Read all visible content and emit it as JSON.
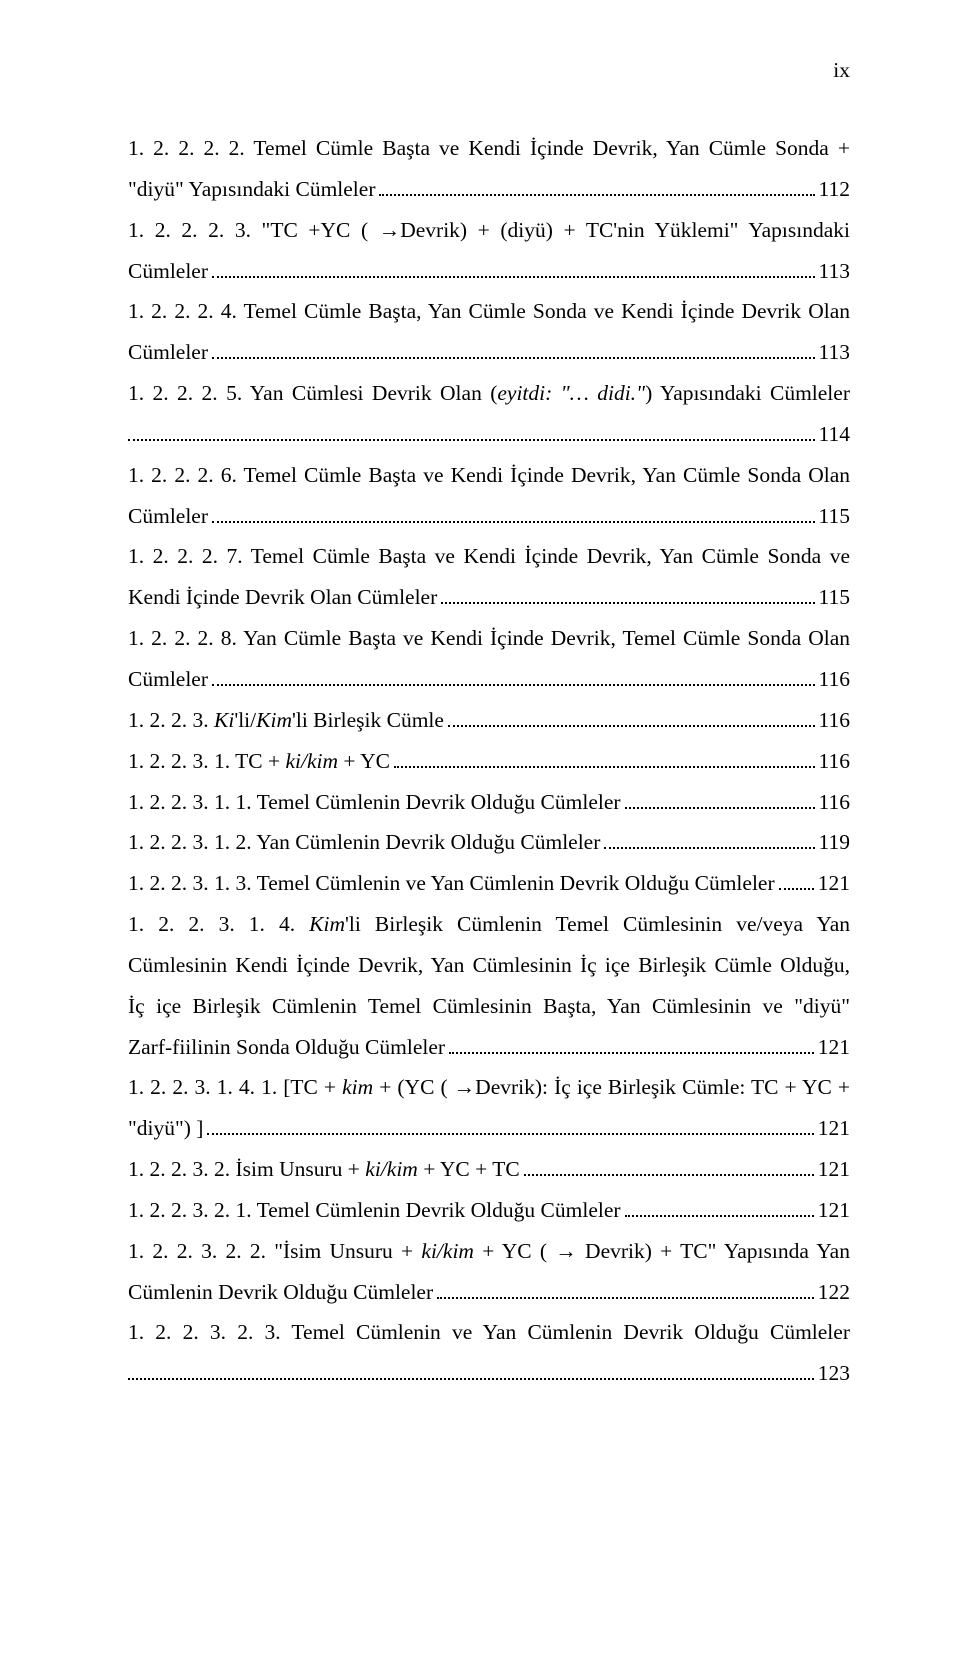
{
  "page_roman": "ix",
  "font": {
    "family": "Times New Roman",
    "size_pt": 12,
    "color": "#000000"
  },
  "background_color": "#ffffff",
  "entries": [
    {
      "lines": [
        "1. 2. 2. 2. 2. Temel Cümle Başta ve Kendi İçinde Devrik, Yan Cümle Sonda +"
      ],
      "last": "\"diyü\" Yapısındaki Cümleler",
      "page": "112"
    },
    {
      "lines": [
        "1. 2. 2. 2. 3. \"TC +YC ( →Devrik) + (diyü) + TC'nin Yüklemi\" Yapısındaki"
      ],
      "last": "Cümleler",
      "page": "113"
    },
    {
      "lines": [
        "1. 2. 2. 2. 4. Temel Cümle Başta, Yan Cümle Sonda ve Kendi İçinde Devrik Olan"
      ],
      "last": "Cümleler",
      "page": "113"
    },
    {
      "lines": [
        "1. 2. 2. 2. 5. Yan Cümlesi Devrik Olan (<i>eyitdi: \"… didi.\"</i>) Yapısındaki Cümleler"
      ],
      "last_full_dots": true,
      "page": "114"
    },
    {
      "lines": [
        "1. 2. 2. 2. 6. Temel Cümle Başta ve Kendi İçinde Devrik, Yan Cümle Sonda Olan"
      ],
      "last": "Cümleler",
      "page": "115"
    },
    {
      "lines": [
        "1. 2. 2. 2. 7. Temel Cümle Başta ve Kendi İçinde Devrik, Yan Cümle Sonda ve"
      ],
      "last": "Kendi İçinde Devrik Olan Cümleler",
      "page": "115"
    },
    {
      "lines": [
        "1. 2. 2. 2. 8. Yan Cümle Başta ve Kendi İçinde Devrik, Temel Cümle Sonda Olan"
      ],
      "last": "Cümleler",
      "page": "116"
    },
    {
      "lines": [],
      "last": "1. 2. 2. 3. <i>Ki</i>'li/<i>Kim</i>'li Birleşik Cümle",
      "page": "116"
    },
    {
      "lines": [],
      "last": "1. 2. 2. 3. 1. TC + <i>ki/kim</i> + YC",
      "page": "116"
    },
    {
      "lines": [],
      "last": "1. 2. 2. 3. 1. 1. Temel Cümlenin Devrik Olduğu Cümleler",
      "page": "116"
    },
    {
      "lines": [],
      "last": "1. 2. 2. 3. 1. 2. Yan Cümlenin Devrik Olduğu Cümleler",
      "page": "119"
    },
    {
      "lines": [],
      "last": "1. 2. 2. 3. 1. 3. Temel Cümlenin ve Yan Cümlenin Devrik Olduğu Cümleler",
      "page": "121"
    },
    {
      "lines": [
        "1. 2. 2. 3. 1. 4. <i>Kim</i>'li Birleşik Cümlenin Temel Cümlesinin ve/veya Yan",
        "Cümlesinin Kendi İçinde Devrik, Yan Cümlesinin İç içe Birleşik Cümle Olduğu,",
        "İç içe Birleşik Cümlenin Temel Cümlesinin Başta, Yan Cümlesinin ve \"diyü\""
      ],
      "last": "Zarf-fiilinin Sonda Olduğu Cümleler",
      "page": "121"
    },
    {
      "lines": [
        "1. 2. 2. 3. 1. 4. 1. [TC + <i>kim</i> + (YC ( →Devrik): İç içe Birleşik Cümle: TC + YC +"
      ],
      "last": "\"diyü\") ]",
      "page": "121"
    },
    {
      "lines": [],
      "last": "1. 2. 2. 3. 2. İsim Unsuru + <i>ki/kim</i> + YC + TC",
      "page": "121"
    },
    {
      "lines": [],
      "last": "1. 2. 2. 3. 2. 1. Temel Cümlenin Devrik Olduğu Cümleler",
      "page": "121"
    },
    {
      "lines": [
        "1. 2. 2. 3. 2. 2. \"İsim Unsuru + <i>ki/kim</i> + YC ( → Devrik) + TC\" Yapısında Yan"
      ],
      "last": "Cümlenin Devrik Olduğu Cümleler",
      "page": "122"
    },
    {
      "lines": [
        "1. 2. 2. 3. 2. 3. Temel Cümlenin ve Yan Cümlenin Devrik Olduğu Cümleler"
      ],
      "last_full_dots": true,
      "page": "123"
    }
  ]
}
